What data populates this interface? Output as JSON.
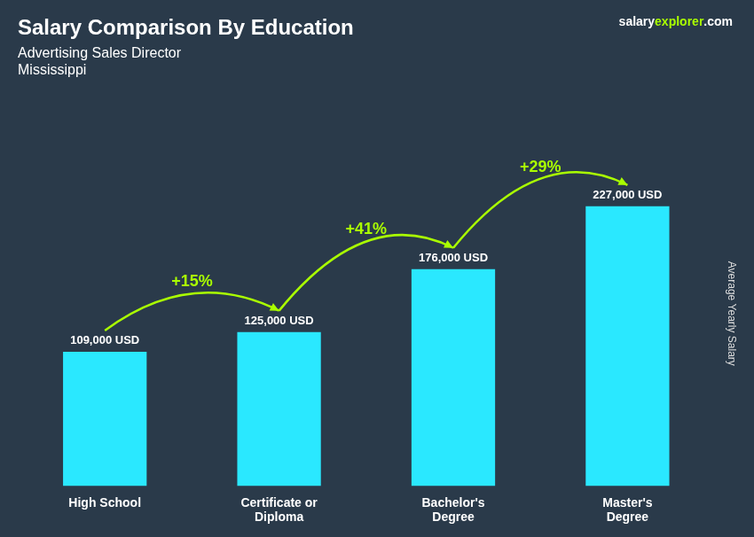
{
  "chart_data": {
    "type": "bar",
    "title": "Salary Comparison By Education",
    "subtitle": [
      "Advertising Sales Director",
      "Mississippi"
    ],
    "ylabel": "Average Yearly Salary",
    "categories": [
      "High School",
      "Certificate or\nDiploma",
      "Bachelor's\nDegree",
      "Master's\nDegree"
    ],
    "values": [
      109000,
      125000,
      176000,
      227000
    ],
    "value_labels": [
      "109,000 USD",
      "125,000 USD",
      "176,000 USD",
      "227,000 USD"
    ],
    "data_labels": true,
    "color": "#2ae8ff",
    "ylim": [
      0,
      280000
    ],
    "tick_labels": "x",
    "grid": false,
    "pct_changes": {
      "labels": [
        "+15%",
        "+41%",
        "+29%"
      ],
      "color": "#aaff00"
    },
    "annotations": [
      {
        "text": "salary",
        "color": "#ffffff"
      },
      {
        "text": "explorer",
        "color": "#aaff00"
      },
      {
        "text": ".com",
        "color": "#ffffff"
      }
    ]
  }
}
